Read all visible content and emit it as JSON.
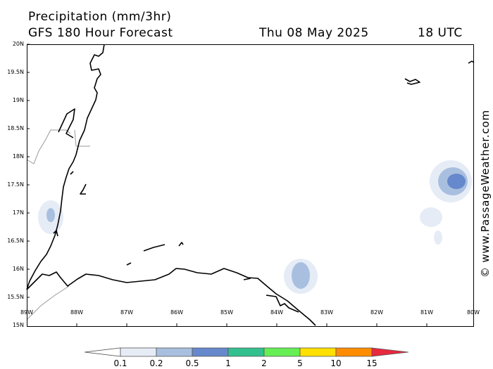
{
  "header": {
    "title": "Precipitation (mm/3hr)",
    "model": "GFS 180 Hour Forecast",
    "date": "Thu 08 May 2025",
    "time": "18 UTC"
  },
  "axes": {
    "lat_labels": [
      "20N",
      "19.5N",
      "19N",
      "18.5N",
      "18N",
      "17.5N",
      "17N",
      "16.5N",
      "16N",
      "15.5N",
      "15N"
    ],
    "lon_labels": [
      "89W",
      "88W",
      "87W",
      "86W",
      "85W",
      "84W",
      "83W",
      "82W",
      "81W",
      "80W"
    ]
  },
  "legend": {
    "values": [
      "0.1",
      "0.2",
      "0.5",
      "1",
      "2",
      "5",
      "10",
      "15"
    ],
    "colors": [
      "#ffffff",
      "#e6ecf6",
      "#a9bfdf",
      "#6688cc",
      "#33c08f",
      "#66ee55",
      "#ffe000",
      "#ff8c00",
      "#e8283c"
    ]
  },
  "credit": "© www.PassageWeather.com",
  "map": {
    "region": "Western Caribbean",
    "lat_range": [
      15,
      20
    ],
    "lon_range": [
      -89,
      -80
    ]
  }
}
